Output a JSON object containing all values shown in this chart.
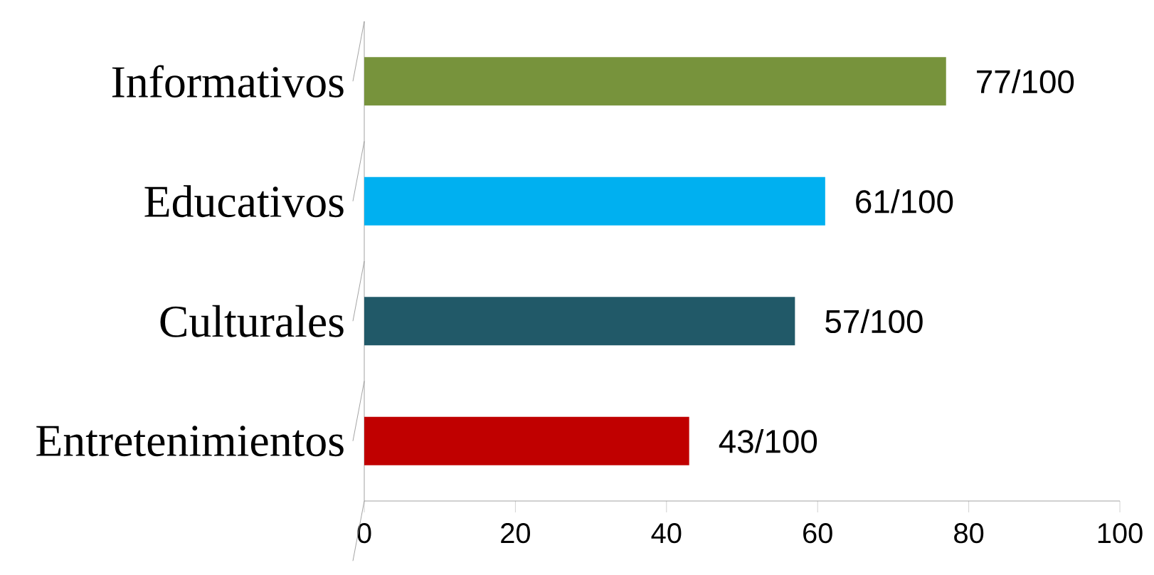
{
  "chart_data": {
    "type": "bar",
    "orientation": "horizontal",
    "categories": [
      "Informativos",
      "Educativos",
      "Culturales",
      "Entretenimientos"
    ],
    "values": [
      77,
      61,
      57,
      43
    ],
    "colors": [
      "#77933c",
      "#00b0f0",
      "#215968",
      "#c00000"
    ],
    "value_labels": [
      "77/100",
      "61/100",
      "57/100",
      "43/100"
    ],
    "xlim": [
      0,
      100
    ],
    "xticks": [
      0,
      20,
      40,
      60,
      80,
      100
    ],
    "grid": false
  }
}
